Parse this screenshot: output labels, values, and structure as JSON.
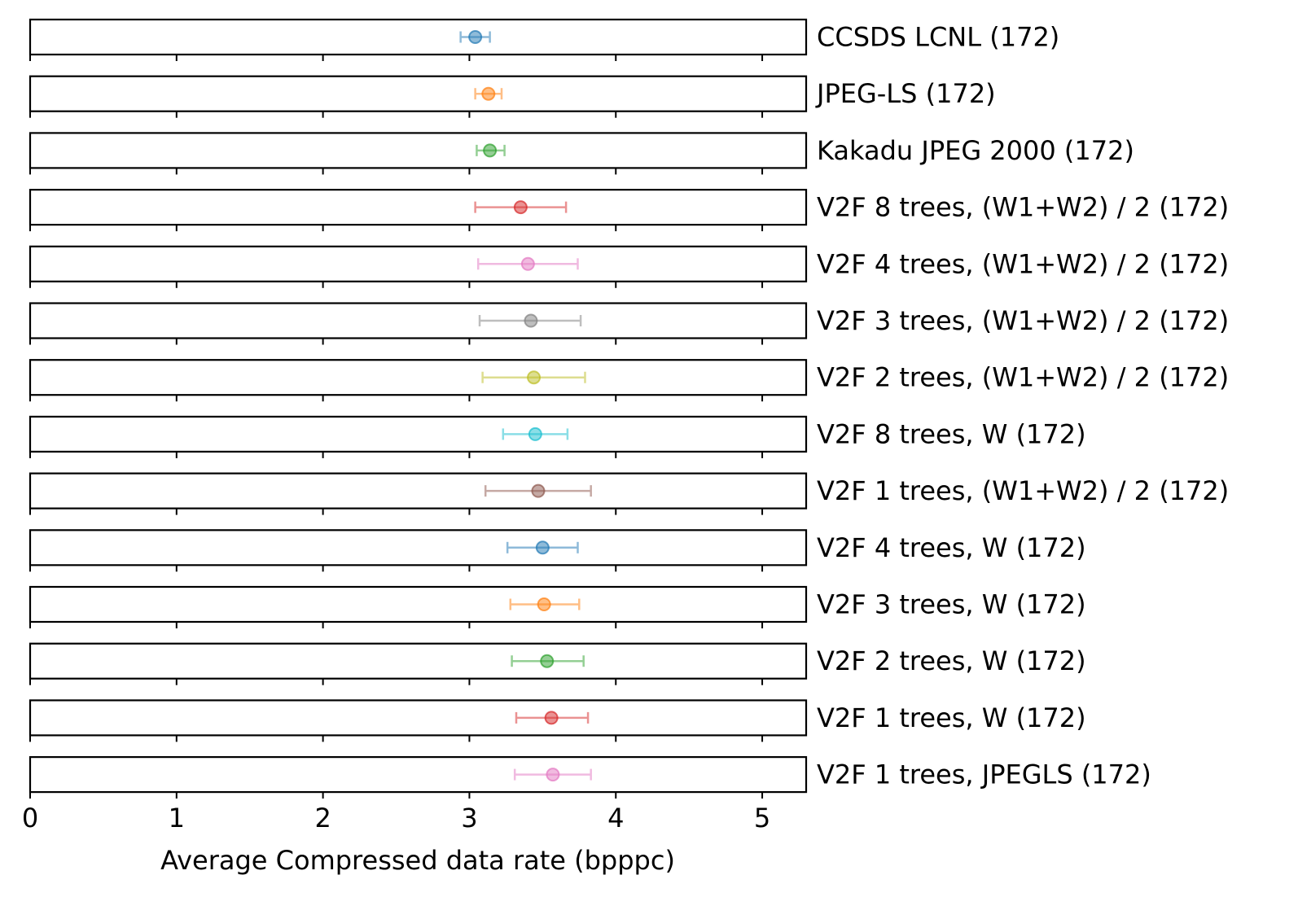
{
  "chart_data": {
    "type": "scatter",
    "xlabel": "Average Compressed data rate (bpppc)",
    "xlim": [
      0,
      5.3
    ],
    "xticks": [
      0,
      1,
      2,
      3,
      4,
      5
    ],
    "grid": false,
    "legend": "none",
    "rows": [
      {
        "label": "CCSDS LCNL (172)",
        "mean": 3.04,
        "low": 2.94,
        "high": 3.14,
        "color": "#1f77b4"
      },
      {
        "label": "JPEG-LS (172)",
        "mean": 3.13,
        "low": 3.04,
        "high": 3.22,
        "color": "#ff7f0e"
      },
      {
        "label": "Kakadu JPEG 2000 (172)",
        "mean": 3.14,
        "low": 3.05,
        "high": 3.24,
        "color": "#2ca02c"
      },
      {
        "label": "V2F 8 trees, (W1+W2) / 2 (172)",
        "mean": 3.35,
        "low": 3.04,
        "high": 3.66,
        "color": "#d62728"
      },
      {
        "label": "V2F 4 trees, (W1+W2) / 2 (172)",
        "mean": 3.4,
        "low": 3.06,
        "high": 3.74,
        "color": "#e377c2"
      },
      {
        "label": "V2F 3 trees, (W1+W2) / 2 (172)",
        "mean": 3.42,
        "low": 3.07,
        "high": 3.76,
        "color": "#7f7f7f"
      },
      {
        "label": "V2F 2 trees, (W1+W2) / 2 (172)",
        "mean": 3.44,
        "low": 3.09,
        "high": 3.79,
        "color": "#bcbd22"
      },
      {
        "label": "V2F 8 trees, W (172)",
        "mean": 3.45,
        "low": 3.23,
        "high": 3.67,
        "color": "#17becf"
      },
      {
        "label": "V2F 1 trees, (W1+W2) / 2 (172)",
        "mean": 3.47,
        "low": 3.11,
        "high": 3.83,
        "color": "#8c564b"
      },
      {
        "label": "V2F 4 trees, W (172)",
        "mean": 3.5,
        "low": 3.26,
        "high": 3.74,
        "color": "#1f77b4"
      },
      {
        "label": "V2F 3 trees, W (172)",
        "mean": 3.51,
        "low": 3.28,
        "high": 3.75,
        "color": "#ff7f0e"
      },
      {
        "label": "V2F 2 trees, W (172)",
        "mean": 3.53,
        "low": 3.29,
        "high": 3.78,
        "color": "#2ca02c"
      },
      {
        "label": "V2F 1 trees, W (172)",
        "mean": 3.56,
        "low": 3.32,
        "high": 3.81,
        "color": "#d62728"
      },
      {
        "label": "V2F 1 trees, JPEGLS (172)",
        "mean": 3.57,
        "low": 3.31,
        "high": 3.83,
        "color": "#e377c2"
      }
    ]
  }
}
